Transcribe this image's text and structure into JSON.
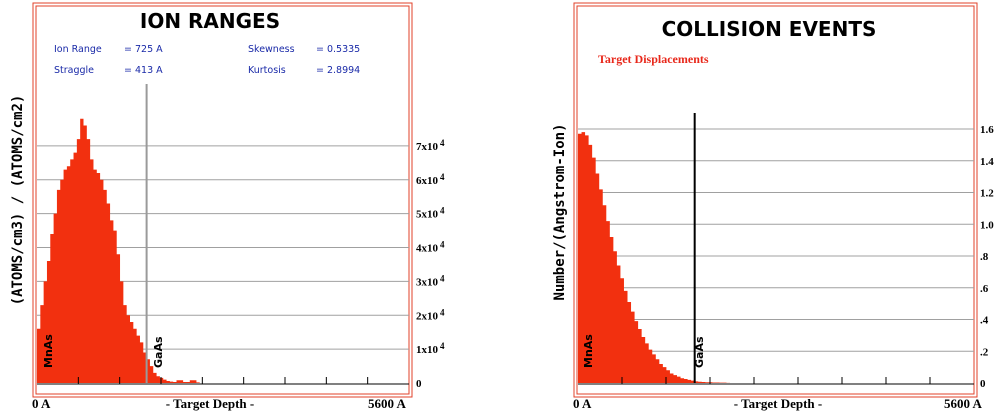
{
  "x_axis": {
    "min_label": "0 A",
    "max_label": "5600 A",
    "title": "- Target Depth -"
  },
  "chart_data": [
    {
      "type": "area",
      "title": "ION RANGES",
      "ylabel": "(ATOMS/cm3) / (ATOMS/cm2)",
      "xlabel": "- Target Depth -",
      "xlim": [
        0,
        5600
      ],
      "ylim": [
        0,
        80000
      ],
      "yticks": [
        {
          "value": 0,
          "base": "0",
          "exp": ""
        },
        {
          "value": 10000,
          "base": "1x10",
          "exp": "4"
        },
        {
          "value": 20000,
          "base": "2x10",
          "exp": "4"
        },
        {
          "value": 30000,
          "base": "3x10",
          "exp": "4"
        },
        {
          "value": 40000,
          "base": "4x10",
          "exp": "4"
        },
        {
          "value": 50000,
          "base": "5x10",
          "exp": "4"
        },
        {
          "value": 60000,
          "base": "6x10",
          "exp": "4"
        },
        {
          "value": 70000,
          "base": "7x10",
          "exp": "4"
        }
      ],
      "stats": {
        "ion_range": {
          "label": "Ion Range",
          "value": "= 725 A"
        },
        "straggle": {
          "label": "Straggle",
          "value": "= 413 A"
        },
        "skewness": {
          "label": "Skewness",
          "value": "= 0.5335"
        },
        "kurtosis": {
          "label": "Kurtosis",
          "value": "= 2.8994"
        }
      },
      "layers": [
        {
          "name": "MnAs"
        },
        {
          "name": "GaAs"
        }
      ],
      "interface_depth": 1650,
      "fill_color": "#f2300f",
      "line_color": "#9a9a9a",
      "x": [
        0,
        50,
        100,
        150,
        200,
        250,
        300,
        350,
        400,
        450,
        500,
        550,
        600,
        650,
        700,
        750,
        800,
        850,
        900,
        950,
        1000,
        1050,
        1100,
        1150,
        1200,
        1250,
        1300,
        1350,
        1400,
        1450,
        1500,
        1550,
        1600,
        1650,
        1700,
        1750,
        1800,
        1850,
        1900,
        1950,
        2000,
        2050,
        2100,
        2200,
        2300,
        2400
      ],
      "y": [
        16000,
        23000,
        30000,
        36000,
        44000,
        50000,
        57000,
        60000,
        63000,
        64000,
        66000,
        68000,
        72000,
        78000,
        76000,
        72000,
        66000,
        63000,
        62000,
        60000,
        57000,
        53000,
        48000,
        45000,
        38000,
        30000,
        23000,
        20000,
        18000,
        16000,
        14000,
        12000,
        9000,
        7000,
        5000,
        3000,
        2000,
        1500,
        1000,
        600,
        400,
        300,
        800,
        300,
        800,
        200
      ]
    },
    {
      "type": "area",
      "title": "COLLISION EVENTS",
      "subtitle": "Target Displacements",
      "ylabel": "Number/(Angstrom-Ion)",
      "xlabel": "- Target Depth -",
      "xlim": [
        0,
        5600
      ],
      "ylim": [
        0,
        1.6
      ],
      "yticks": [
        {
          "value": 0,
          "label": "0"
        },
        {
          "value": 0.2,
          "label": ".2"
        },
        {
          "value": 0.4,
          "label": ".4"
        },
        {
          "value": 0.6,
          "label": ".6"
        },
        {
          "value": 0.8,
          "label": ".8"
        },
        {
          "value": 1.0,
          "label": "1.0"
        },
        {
          "value": 1.2,
          "label": "1.2"
        },
        {
          "value": 1.4,
          "label": "1.4"
        },
        {
          "value": 1.6,
          "label": "1.6"
        }
      ],
      "layers": [
        {
          "name": "MnAs"
        },
        {
          "name": "GaAs"
        }
      ],
      "interface_depth": 1650,
      "fill_color": "#f2300f",
      "line_color": "#000000",
      "x": [
        0,
        50,
        100,
        150,
        200,
        250,
        300,
        350,
        400,
        450,
        500,
        550,
        600,
        650,
        700,
        750,
        800,
        850,
        900,
        950,
        1000,
        1050,
        1100,
        1150,
        1200,
        1250,
        1300,
        1350,
        1400,
        1450,
        1500,
        1550,
        1600,
        1650,
        1700,
        1750,
        1800,
        1900,
        2000,
        2100
      ],
      "y": [
        1.57,
        1.58,
        1.56,
        1.5,
        1.42,
        1.32,
        1.22,
        1.12,
        1.02,
        0.92,
        0.83,
        0.74,
        0.66,
        0.58,
        0.51,
        0.45,
        0.39,
        0.34,
        0.29,
        0.25,
        0.21,
        0.18,
        0.15,
        0.12,
        0.1,
        0.08,
        0.06,
        0.05,
        0.04,
        0.03,
        0.025,
        0.02,
        0.015,
        0.01,
        0.008,
        0.006,
        0.005,
        0.003,
        0.002,
        0.001
      ]
    }
  ]
}
